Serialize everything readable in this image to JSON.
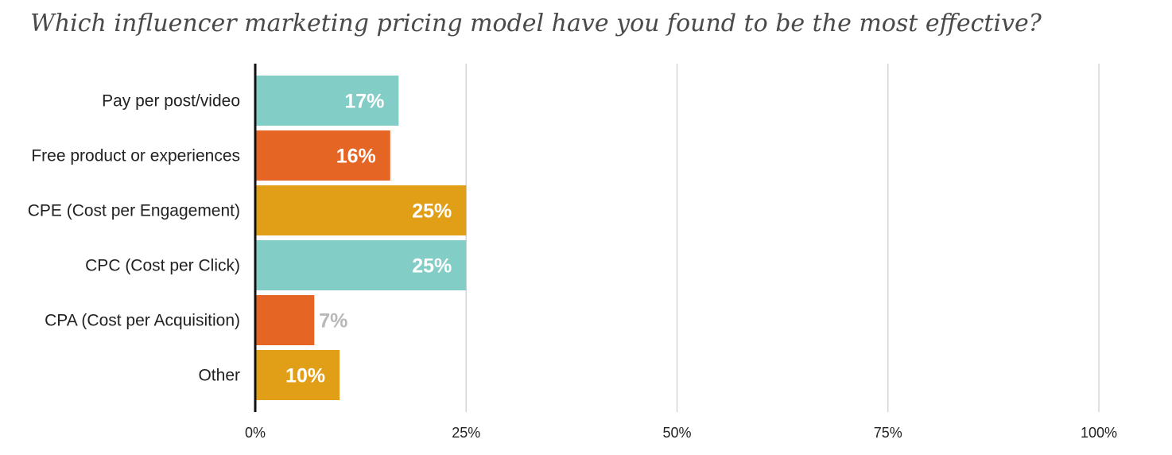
{
  "title": "Which influencer marketing pricing model have you found to be the most effective?",
  "chart_data": {
    "type": "bar",
    "orientation": "horizontal",
    "title": "Which influencer marketing pricing model have you found to be the most effective?",
    "categories": [
      "Pay per post/video",
      "Free product or experiences",
      "CPE (Cost per Engagement)",
      "CPC (Cost per Click)",
      "CPA (Cost per Acquisition)",
      "Other"
    ],
    "values": [
      17,
      16,
      25,
      25,
      7,
      10
    ],
    "value_labels": [
      "17%",
      "16%",
      "25%",
      "25%",
      "7%",
      "10%"
    ],
    "bar_colors": [
      "#83cdc7",
      "#e56525",
      "#e09f16",
      "#83cdc7",
      "#e56525",
      "#e09f16"
    ],
    "xlim": [
      0,
      100
    ],
    "x_ticks": [
      0,
      25,
      50,
      75,
      100
    ],
    "x_tick_labels": [
      "0%",
      "25%",
      "50%",
      "75%",
      "100%"
    ],
    "grid": true,
    "legend": "none",
    "xlabel": "",
    "ylabel": ""
  },
  "colors": {
    "teal": "#83cdc7",
    "orange": "#e56525",
    "gold": "#e09f16",
    "label_inside": "#ffffff",
    "label_outside": "#b8b8b8",
    "gridline": "#cfcfcf",
    "axis": "#111111",
    "title": "#4a4a4a"
  }
}
